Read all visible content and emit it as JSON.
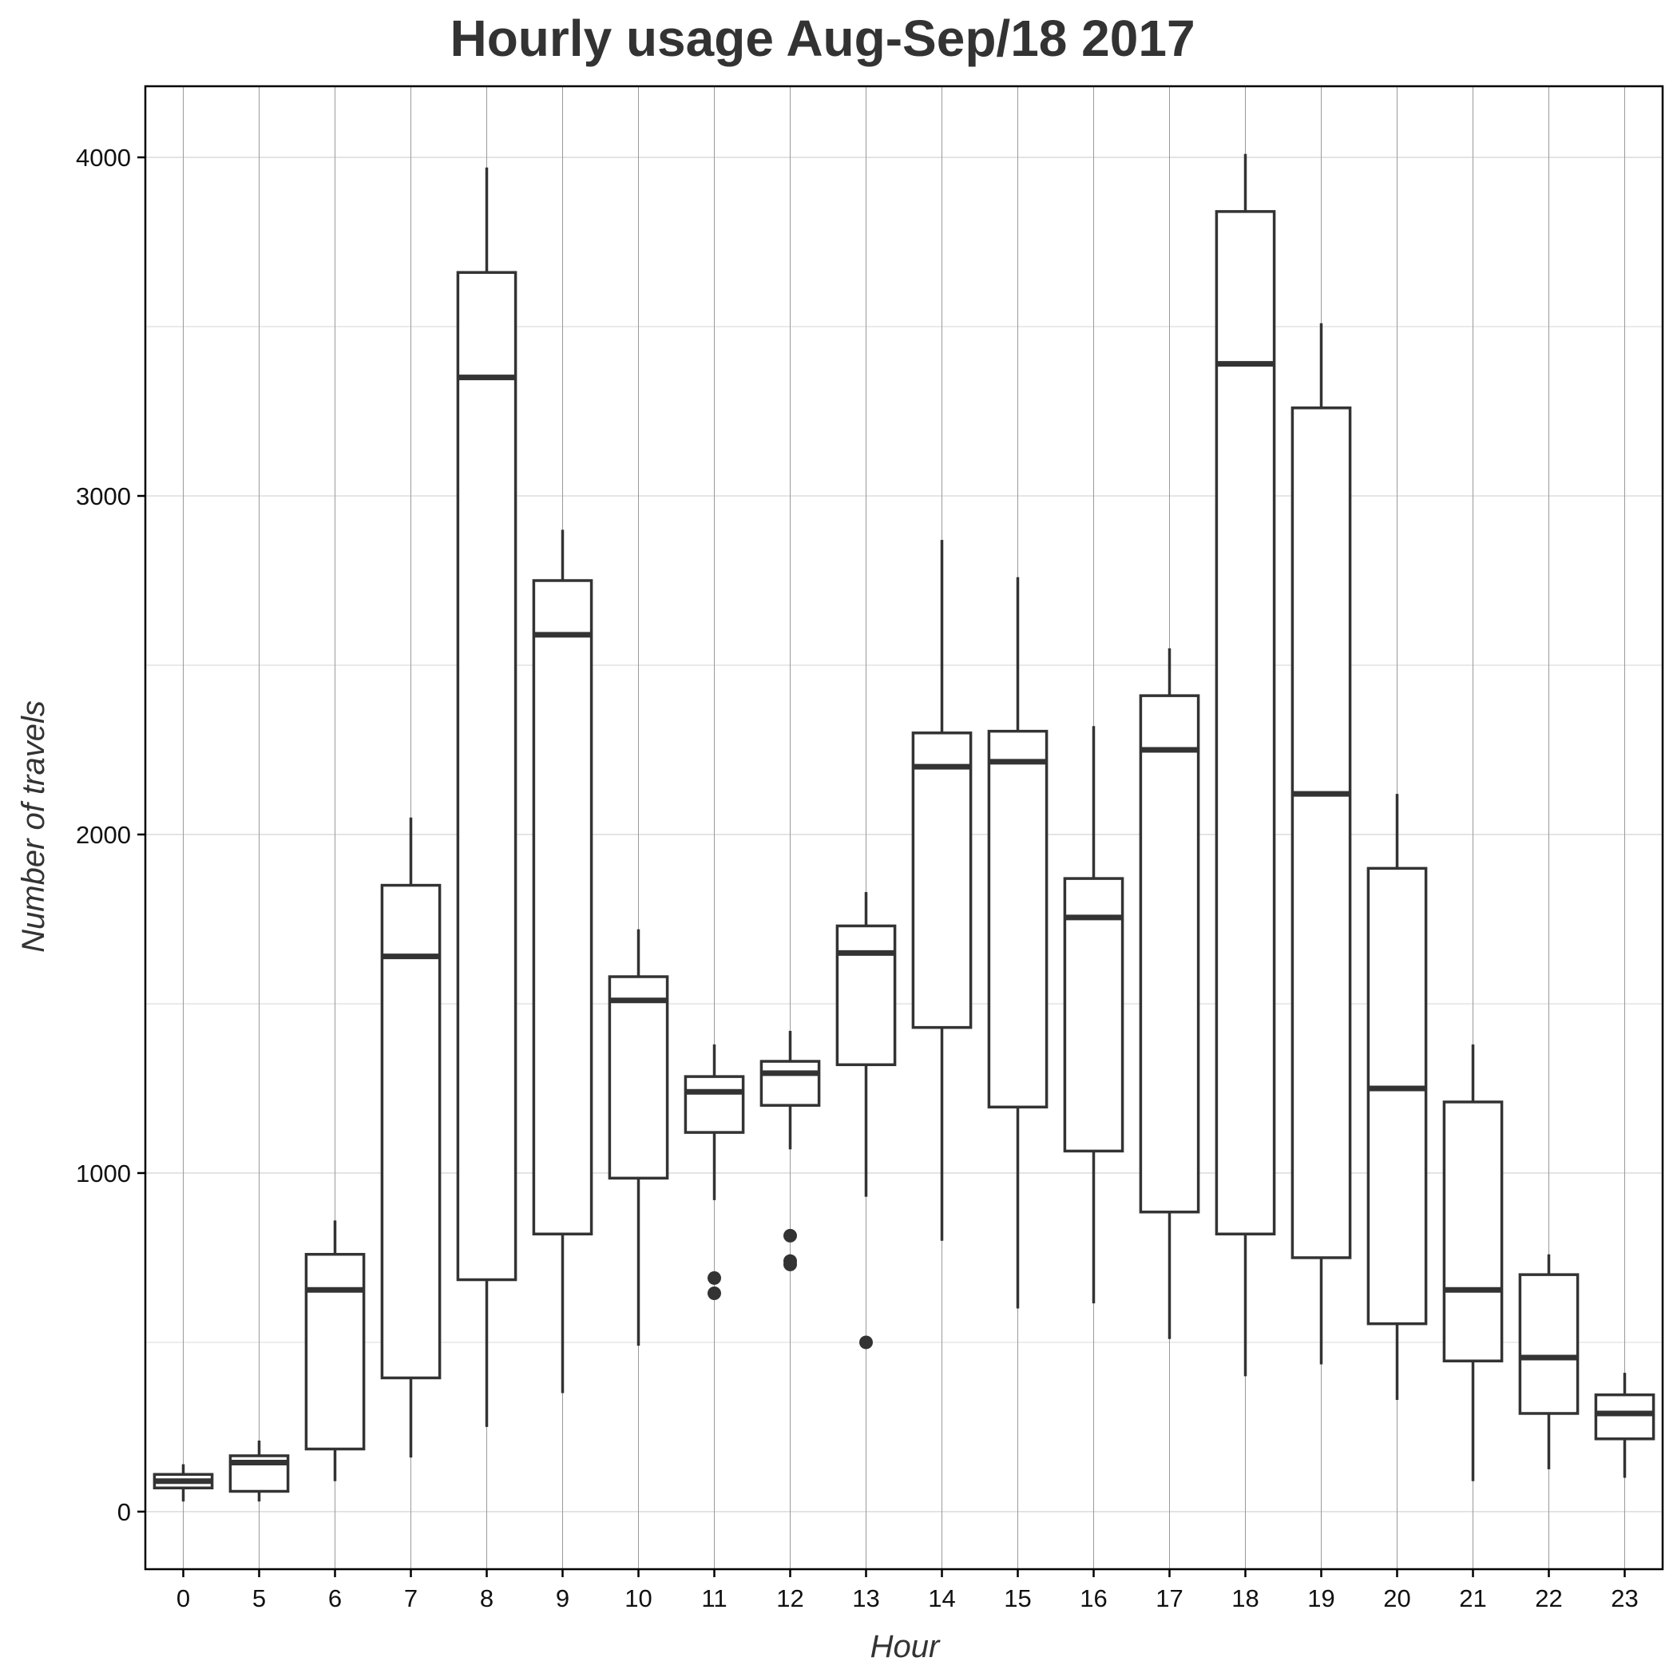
{
  "chart_data": {
    "type": "boxplot",
    "title": "Hourly usage Aug-Sep/18 2017",
    "xlabel": "Hour",
    "ylabel": "Number of travels",
    "ylim": [
      -170,
      4210
    ],
    "yticks": [
      0,
      1000,
      2000,
      3000,
      4000
    ],
    "yminor": [
      500,
      1500,
      2500,
      3500
    ],
    "grid": true,
    "categories": [
      "0",
      "5",
      "6",
      "7",
      "8",
      "9",
      "10",
      "11",
      "12",
      "13",
      "14",
      "15",
      "16",
      "17",
      "18",
      "19",
      "20",
      "21",
      "22",
      "23"
    ],
    "boxes": [
      {
        "hour": "0",
        "whisker_low": 30,
        "q1": 70,
        "median": 90,
        "q3": 110,
        "whisker_high": 140,
        "outliers": []
      },
      {
        "hour": "5",
        "whisker_low": 30,
        "q1": 60,
        "median": 145,
        "q3": 165,
        "whisker_high": 210,
        "outliers": []
      },
      {
        "hour": "6",
        "whisker_low": 90,
        "q1": 185,
        "median": 655,
        "q3": 760,
        "whisker_high": 860,
        "outliers": []
      },
      {
        "hour": "7",
        "whisker_low": 160,
        "q1": 395,
        "median": 1640,
        "q3": 1850,
        "whisker_high": 2050,
        "outliers": []
      },
      {
        "hour": "8",
        "whisker_low": 250,
        "q1": 685,
        "median": 3350,
        "q3": 3660,
        "whisker_high": 3970,
        "outliers": []
      },
      {
        "hour": "9",
        "whisker_low": 350,
        "q1": 820,
        "median": 2590,
        "q3": 2750,
        "whisker_high": 2900,
        "outliers": []
      },
      {
        "hour": "10",
        "whisker_low": 490,
        "q1": 985,
        "median": 1510,
        "q3": 1580,
        "whisker_high": 1720,
        "outliers": []
      },
      {
        "hour": "11",
        "whisker_low": 920,
        "q1": 1120,
        "median": 1240,
        "q3": 1285,
        "whisker_high": 1380,
        "outliers": [
          690,
          645
        ]
      },
      {
        "hour": "12",
        "whisker_low": 1070,
        "q1": 1200,
        "median": 1295,
        "q3": 1330,
        "whisker_high": 1420,
        "outliers": [
          815,
          740,
          730
        ]
      },
      {
        "hour": "13",
        "whisker_low": 930,
        "q1": 1320,
        "median": 1650,
        "q3": 1730,
        "whisker_high": 1830,
        "outliers": [
          500
        ]
      },
      {
        "hour": "14",
        "whisker_low": 800,
        "q1": 1430,
        "median": 2200,
        "q3": 2300,
        "whisker_high": 2870,
        "outliers": []
      },
      {
        "hour": "15",
        "whisker_low": 600,
        "q1": 1195,
        "median": 2215,
        "q3": 2305,
        "whisker_high": 2760,
        "outliers": []
      },
      {
        "hour": "16",
        "whisker_low": 615,
        "q1": 1065,
        "median": 1755,
        "q3": 1870,
        "whisker_high": 2320,
        "outliers": []
      },
      {
        "hour": "17",
        "whisker_low": 510,
        "q1": 885,
        "median": 2250,
        "q3": 2410,
        "whisker_high": 2550,
        "outliers": []
      },
      {
        "hour": "18",
        "whisker_low": 400,
        "q1": 820,
        "median": 3390,
        "q3": 3840,
        "whisker_high": 4010,
        "outliers": []
      },
      {
        "hour": "19",
        "whisker_low": 435,
        "q1": 750,
        "median": 2120,
        "q3": 3260,
        "whisker_high": 3510,
        "outliers": []
      },
      {
        "hour": "20",
        "whisker_low": 330,
        "q1": 555,
        "median": 1250,
        "q3": 1900,
        "whisker_high": 2120,
        "outliers": []
      },
      {
        "hour": "21",
        "whisker_low": 90,
        "q1": 445,
        "median": 655,
        "q3": 1210,
        "whisker_high": 1380,
        "outliers": []
      },
      {
        "hour": "22",
        "whisker_low": 125,
        "q1": 290,
        "median": 455,
        "q3": 700,
        "whisker_high": 760,
        "outliers": []
      },
      {
        "hour": "23",
        "whisker_low": 100,
        "q1": 215,
        "median": 290,
        "q3": 345,
        "whisker_high": 410,
        "outliers": []
      }
    ],
    "colors": {
      "box_line": "#333333",
      "major_grid": "#9a9a9a",
      "minor_grid": "#dddddd",
      "frame": "#000000",
      "box_fill": "#ffffff"
    }
  }
}
